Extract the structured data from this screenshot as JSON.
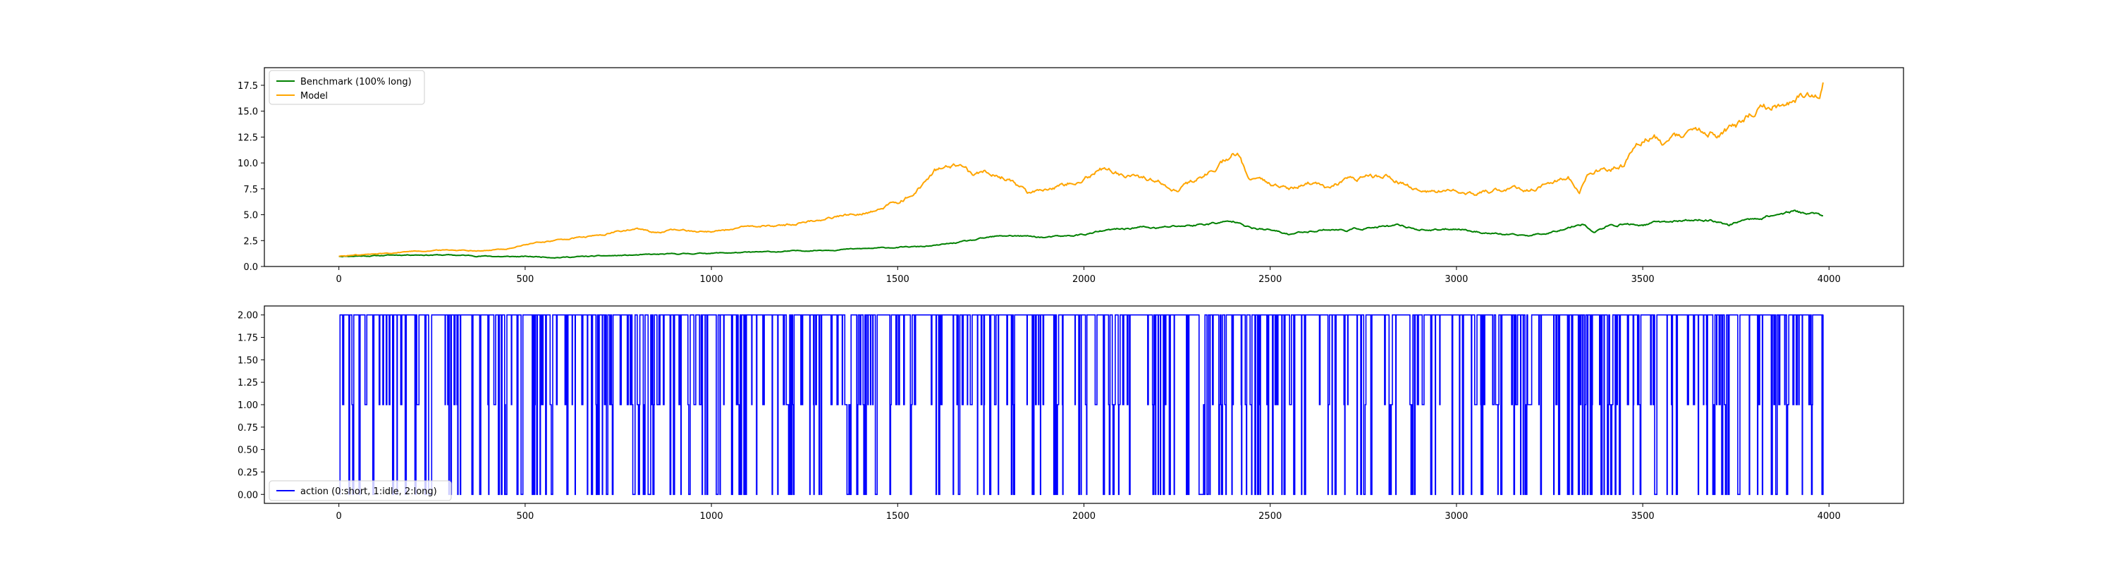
{
  "chart_data": [
    {
      "type": "line",
      "title": "",
      "xlabel": "",
      "ylabel": "",
      "xlim": [
        -200,
        4200
      ],
      "ylim": [
        0,
        19.2
      ],
      "xticks": [
        0,
        500,
        1000,
        1500,
        2000,
        2500,
        3000,
        3500,
        4000
      ],
      "yticks": [
        0.0,
        2.5,
        5.0,
        7.5,
        10.0,
        12.5,
        15.0,
        17.5
      ],
      "ytick_labels": [
        "0.0",
        "2.5",
        "5.0",
        "7.5",
        "10.0",
        "12.5",
        "15.0",
        "17.5"
      ],
      "legend_position": "top-left",
      "grid": false,
      "series": [
        {
          "name": "Benchmark (100% long)",
          "color": "#008000",
          "x": [
            0,
            100,
            200,
            300,
            400,
            450,
            500,
            600,
            700,
            800,
            900,
            1000,
            1100,
            1200,
            1300,
            1400,
            1500,
            1550,
            1600,
            1700,
            1750,
            1800,
            1850,
            1900,
            1950,
            2000,
            2050,
            2100,
            2150,
            2200,
            2250,
            2300,
            2350,
            2400,
            2420,
            2450,
            2500,
            2550,
            2600,
            2650,
            2700,
            2750,
            2800,
            2850,
            2900,
            2950,
            3000,
            3050,
            3100,
            3150,
            3200,
            3250,
            3300,
            3340,
            3370,
            3400,
            3450,
            3500,
            3550,
            3600,
            3650,
            3700,
            3730,
            3760,
            3800,
            3850,
            3900,
            3950,
            3985
          ],
          "values": [
            1.0,
            1.05,
            1.15,
            1.1,
            1.0,
            0.95,
            0.95,
            0.9,
            1.0,
            1.1,
            1.2,
            1.3,
            1.35,
            1.45,
            1.6,
            1.7,
            1.85,
            1.9,
            2.0,
            2.5,
            2.8,
            3.0,
            2.9,
            2.8,
            2.9,
            3.1,
            3.4,
            3.6,
            3.8,
            3.7,
            3.9,
            4.0,
            4.2,
            4.3,
            4.4,
            3.7,
            3.5,
            3.1,
            3.4,
            3.6,
            3.5,
            3.7,
            3.8,
            3.9,
            3.6,
            3.5,
            3.7,
            3.4,
            3.2,
            3.0,
            3.0,
            3.3,
            3.8,
            4.2,
            3.3,
            3.8,
            4.1,
            4.0,
            4.3,
            4.4,
            4.5,
            4.4,
            4.0,
            4.4,
            4.6,
            5.0,
            5.3,
            5.1,
            4.9
          ]
        },
        {
          "name": "Model",
          "color": "#FFA500",
          "x": [
            0,
            100,
            150,
            200,
            300,
            400,
            450,
            500,
            550,
            600,
            700,
            750,
            800,
            850,
            900,
            1000,
            1100,
            1200,
            1300,
            1400,
            1450,
            1500,
            1550,
            1600,
            1650,
            1700,
            1750,
            1800,
            1850,
            1900,
            1950,
            2000,
            2050,
            2100,
            2150,
            2200,
            2250,
            2300,
            2350,
            2400,
            2420,
            2440,
            2480,
            2500,
            2550,
            2600,
            2650,
            2700,
            2750,
            2800,
            2850,
            2900,
            2950,
            3000,
            3050,
            3100,
            3150,
            3200,
            3250,
            3300,
            3330,
            3350,
            3400,
            3450,
            3500,
            3530,
            3560,
            3600,
            3650,
            3700,
            3750,
            3800,
            3850,
            3900,
            3950,
            3975,
            3985
          ],
          "values": [
            1.0,
            1.2,
            1.35,
            1.5,
            1.6,
            1.55,
            1.7,
            2.1,
            2.4,
            2.6,
            3.0,
            3.4,
            3.6,
            3.3,
            3.5,
            3.4,
            3.8,
            4.0,
            4.6,
            5.2,
            5.5,
            6.3,
            7.2,
            9.3,
            9.5,
            8.8,
            9.2,
            8.5,
            7.1,
            7.6,
            8.0,
            8.8,
            9.4,
            9.0,
            8.6,
            8.3,
            7.6,
            8.3,
            9.5,
            10.8,
            10.6,
            8.5,
            8.0,
            7.8,
            7.6,
            8.1,
            7.5,
            8.2,
            8.5,
            8.8,
            8.2,
            7.3,
            7.2,
            7.6,
            7.0,
            7.3,
            7.6,
            7.4,
            8.0,
            8.6,
            6.8,
            8.8,
            9.4,
            9.7,
            12.3,
            12.8,
            11.8,
            12.4,
            13.2,
            12.8,
            13.5,
            14.8,
            15.8,
            16.0,
            16.5,
            17.2,
            18.4
          ]
        }
      ]
    },
    {
      "type": "line",
      "title": "",
      "xlabel": "",
      "ylabel": "",
      "xlim": [
        -200,
        4200
      ],
      "ylim": [
        -0.1,
        2.1
      ],
      "xticks": [
        0,
        500,
        1000,
        1500,
        2000,
        2500,
        3000,
        3500,
        4000
      ],
      "yticks": [
        0.0,
        0.25,
        0.5,
        0.75,
        1.0,
        1.25,
        1.5,
        1.75,
        2.0
      ],
      "ytick_labels": [
        "0.00",
        "0.25",
        "0.50",
        "0.75",
        "1.00",
        "1.25",
        "1.50",
        "1.75",
        "2.00"
      ],
      "legend_position": "bottom-left",
      "grid": false,
      "x_range": [
        0,
        3985
      ],
      "step_seed": 7,
      "series": [
        {
          "name": "action (0:short, 1:idle, 2:long)",
          "color": "#0000FF",
          "levels": [
            0,
            1,
            2
          ]
        }
      ]
    }
  ]
}
